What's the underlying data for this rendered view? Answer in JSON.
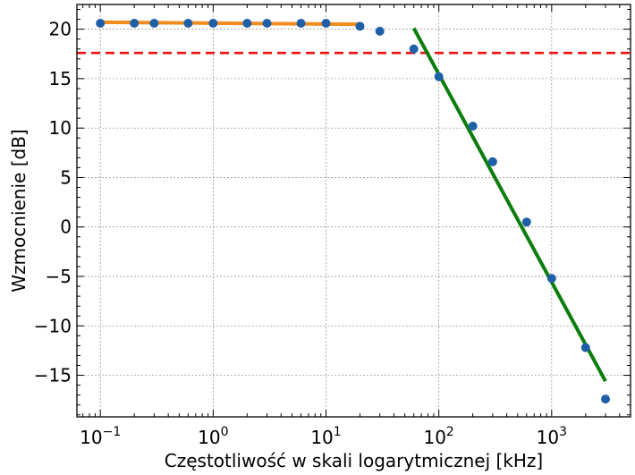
{
  "chart_data": {
    "type": "scatter",
    "xscale": "log",
    "xlabel": "Częstotliwość w skali logarytmicznej [kHz]",
    "ylabel": "Wzmocnienie [dB]",
    "xlim": [
      0.062,
      5000
    ],
    "ylim": [
      -19.2,
      22.5
    ],
    "grid": true,
    "x_ticks": [
      {
        "value": 0.1,
        "base": "10",
        "exp": "−1"
      },
      {
        "value": 1,
        "base": "10",
        "exp": "0"
      },
      {
        "value": 10,
        "base": "10",
        "exp": "1"
      },
      {
        "value": 100,
        "base": "10",
        "exp": "2"
      },
      {
        "value": 1000,
        "base": "10",
        "exp": "3"
      }
    ],
    "y_ticks": [
      {
        "value": 20,
        "label": "20"
      },
      {
        "value": 15,
        "label": "15"
      },
      {
        "value": 10,
        "label": "10"
      },
      {
        "value": 5,
        "label": "5"
      },
      {
        "value": 0,
        "label": "0"
      },
      {
        "value": -5,
        "label": "−5"
      },
      {
        "value": -10,
        "label": "−10"
      },
      {
        "value": -15,
        "label": "−15"
      }
    ],
    "series": [
      {
        "kind": "points",
        "color": "#1f5fa8",
        "points": [
          {
            "x": 0.1,
            "y": 20.6
          },
          {
            "x": 0.2,
            "y": 20.6
          },
          {
            "x": 0.3,
            "y": 20.6
          },
          {
            "x": 0.6,
            "y": 20.6
          },
          {
            "x": 1,
            "y": 20.6
          },
          {
            "x": 2,
            "y": 20.6
          },
          {
            "x": 3,
            "y": 20.6
          },
          {
            "x": 6,
            "y": 20.6
          },
          {
            "x": 10,
            "y": 20.6
          },
          {
            "x": 20,
            "y": 20.3
          },
          {
            "x": 30,
            "y": 19.8
          },
          {
            "x": 60,
            "y": 18.0
          },
          {
            "x": 100,
            "y": 15.2
          },
          {
            "x": 200,
            "y": 10.2
          },
          {
            "x": 300,
            "y": 6.6
          },
          {
            "x": 600,
            "y": 0.5
          },
          {
            "x": 1000,
            "y": -5.2
          },
          {
            "x": 2000,
            "y": -12.2
          },
          {
            "x": 3000,
            "y": -17.4
          }
        ]
      },
      {
        "kind": "line",
        "color": "#f28a1c",
        "points": [
          {
            "x": 0.1,
            "y": 20.7
          },
          {
            "x": 20,
            "y": 20.5
          }
        ]
      },
      {
        "kind": "line",
        "color": "#0a7d0a",
        "points": [
          {
            "x": 60,
            "y": 20.1
          },
          {
            "x": 3000,
            "y": -15.6
          }
        ]
      }
    ],
    "hline": {
      "y": 17.6,
      "color": "#ee1111",
      "style": "dashed"
    }
  }
}
